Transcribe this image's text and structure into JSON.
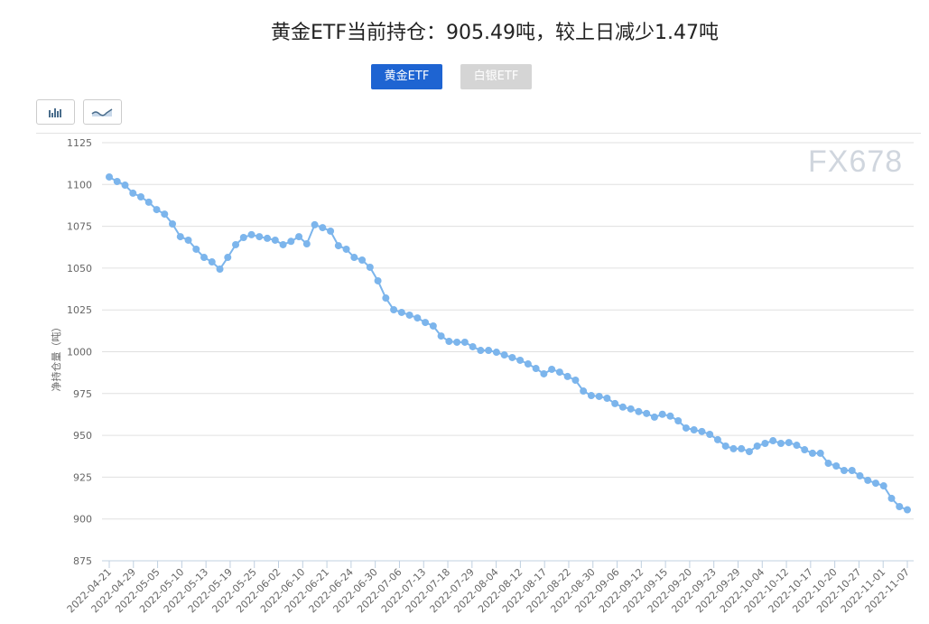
{
  "title": "黄金ETF当前持仓：905.49吨，较上日减少1.47吨",
  "tabs": [
    {
      "label": "黄金ETF",
      "active": true,
      "color": "#1e64d2"
    },
    {
      "label": "白银ETF",
      "active": false,
      "color": "#d5d5d5"
    }
  ],
  "chart_toggles": [
    {
      "icon": "bar-chart-icon"
    },
    {
      "icon": "line-chart-icon"
    }
  ],
  "watermark": "FX678",
  "chart_data": {
    "type": "line",
    "title": "",
    "ylabel": "净持仓量（吨）",
    "xlabel": "",
    "ylim": [
      875,
      1125
    ],
    "yticks": [
      875,
      900,
      925,
      950,
      975,
      1000,
      1025,
      1050,
      1075,
      1100,
      1125
    ],
    "grid": true,
    "line_color": "#7cb5ec",
    "xtick_labels": [
      "2022-04-21",
      "2022-04-29",
      "2022-05-05",
      "2022-05-10",
      "2022-05-13",
      "2022-05-19",
      "2022-05-25",
      "2022-06-02",
      "2022-06-10",
      "2022-06-21",
      "2022-06-24",
      "2022-06-30",
      "2022-07-06",
      "2022-07-13",
      "2022-07-18",
      "2022-07-29",
      "2022-08-04",
      "2022-08-12",
      "2022-08-17",
      "2022-08-22",
      "2022-08-30",
      "2022-09-06",
      "2022-09-12",
      "2022-09-15",
      "2022-09-20",
      "2022-09-23",
      "2022-09-29",
      "2022-10-04",
      "2022-10-12",
      "2022-10-17",
      "2022-10-20",
      "2022-10-27",
      "2022-11-01",
      "2022-11-07"
    ],
    "values": [
      1104.5,
      1101.8,
      1099.6,
      1094.8,
      1092.6,
      1089.4,
      1085,
      1082.3,
      1076.4,
      1068.8,
      1066.7,
      1061.3,
      1056.4,
      1053.7,
      1049.4,
      1056.4,
      1064,
      1068.3,
      1070,
      1068.8,
      1067.8,
      1066.7,
      1064,
      1066,
      1068.8,
      1064.5,
      1075.9,
      1074.2,
      1072.1,
      1063.4,
      1061.3,
      1056.4,
      1054.8,
      1050.5,
      1042.4,
      1032.1,
      1025.1,
      1023.5,
      1021.9,
      1020.2,
      1017.5,
      1015.4,
      1009.4,
      1006.2,
      1005.7,
      1005.7,
      1003,
      1000.8,
      1000.8,
      999.7,
      998.1,
      996.5,
      994.9,
      992.7,
      990,
      986.8,
      989.5,
      987.8,
      985.2,
      983,
      976.5,
      973.8,
      973.3,
      972.2,
      969,
      966.9,
      965.8,
      964.2,
      963.1,
      960.9,
      962.6,
      961.5,
      958.7,
      954.4,
      953.3,
      952.3,
      950.6,
      947.4,
      943.6,
      942,
      942,
      940.3,
      943.6,
      945.2,
      946.8,
      945.2,
      945.7,
      944.1,
      941.4,
      939.3,
      939.3,
      933.3,
      931.7,
      929,
      929,
      925.8,
      923.1,
      921.4,
      919.8,
      912.3,
      907.4,
      905.49
    ]
  }
}
